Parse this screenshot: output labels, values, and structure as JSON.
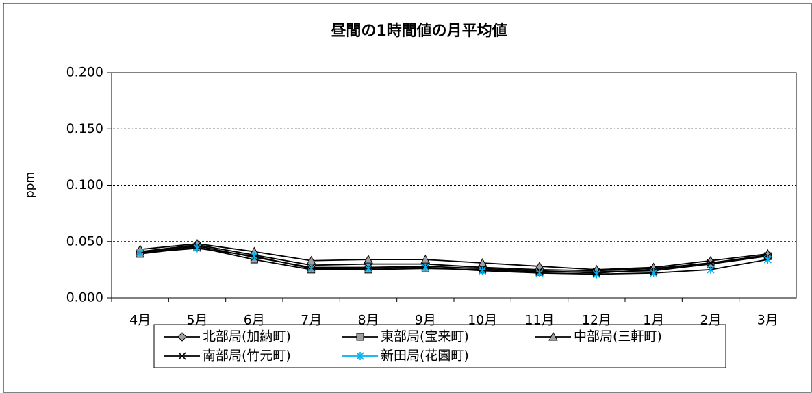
{
  "chart_data": {
    "type": "line",
    "title": "昼間の1時間値の月平均値",
    "y_label": "ppm",
    "categories": [
      "4月",
      "5月",
      "6月",
      "7月",
      "8月",
      "9月",
      "10月",
      "11月",
      "12月",
      "1月",
      "2月",
      "3月"
    ],
    "ylim": [
      0,
      0.2
    ],
    "yticks": [
      {
        "value": 0,
        "label": "0.000"
      },
      {
        "value": 0.05,
        "label": "0.050"
      },
      {
        "value": 0.1,
        "label": "0.100"
      },
      {
        "value": 0.15,
        "label": "0.150"
      },
      {
        "value": 0.2,
        "label": "0.200"
      }
    ],
    "grid": true,
    "legend": "bottom",
    "series": [
      {
        "name": "北部局(加納町)",
        "marker": "diamond",
        "color": "#a0a0a0",
        "values": [
          0.041,
          0.047,
          0.038,
          0.029,
          0.03,
          0.03,
          0.027,
          0.025,
          0.024,
          0.026,
          0.031,
          0.038
        ]
      },
      {
        "name": "東部局(宝来町)",
        "marker": "square",
        "color": "#a0a0a0",
        "values": [
          0.039,
          0.045,
          0.034,
          0.025,
          0.025,
          0.026,
          0.025,
          0.023,
          0.023,
          0.024,
          0.03,
          0.037
        ]
      },
      {
        "name": "中部局(三軒町)",
        "marker": "triangle",
        "color": "#a0a0a0",
        "values": [
          0.043,
          0.048,
          0.041,
          0.033,
          0.034,
          0.034,
          0.031,
          0.028,
          0.025,
          0.027,
          0.033,
          0.039
        ]
      },
      {
        "name": "南部局(竹元町)",
        "marker": "x",
        "color": "#000000",
        "values": [
          0.04,
          0.046,
          0.036,
          0.027,
          0.027,
          0.028,
          0.026,
          0.024,
          0.022,
          0.025,
          0.031,
          0.037
        ]
      },
      {
        "name": "新田局(花園町)",
        "marker": "asterisk",
        "color": "#00b0f0",
        "values": [
          0.04,
          0.044,
          0.037,
          0.026,
          0.026,
          0.027,
          0.024,
          0.022,
          0.021,
          0.022,
          0.025,
          0.034
        ]
      }
    ]
  }
}
